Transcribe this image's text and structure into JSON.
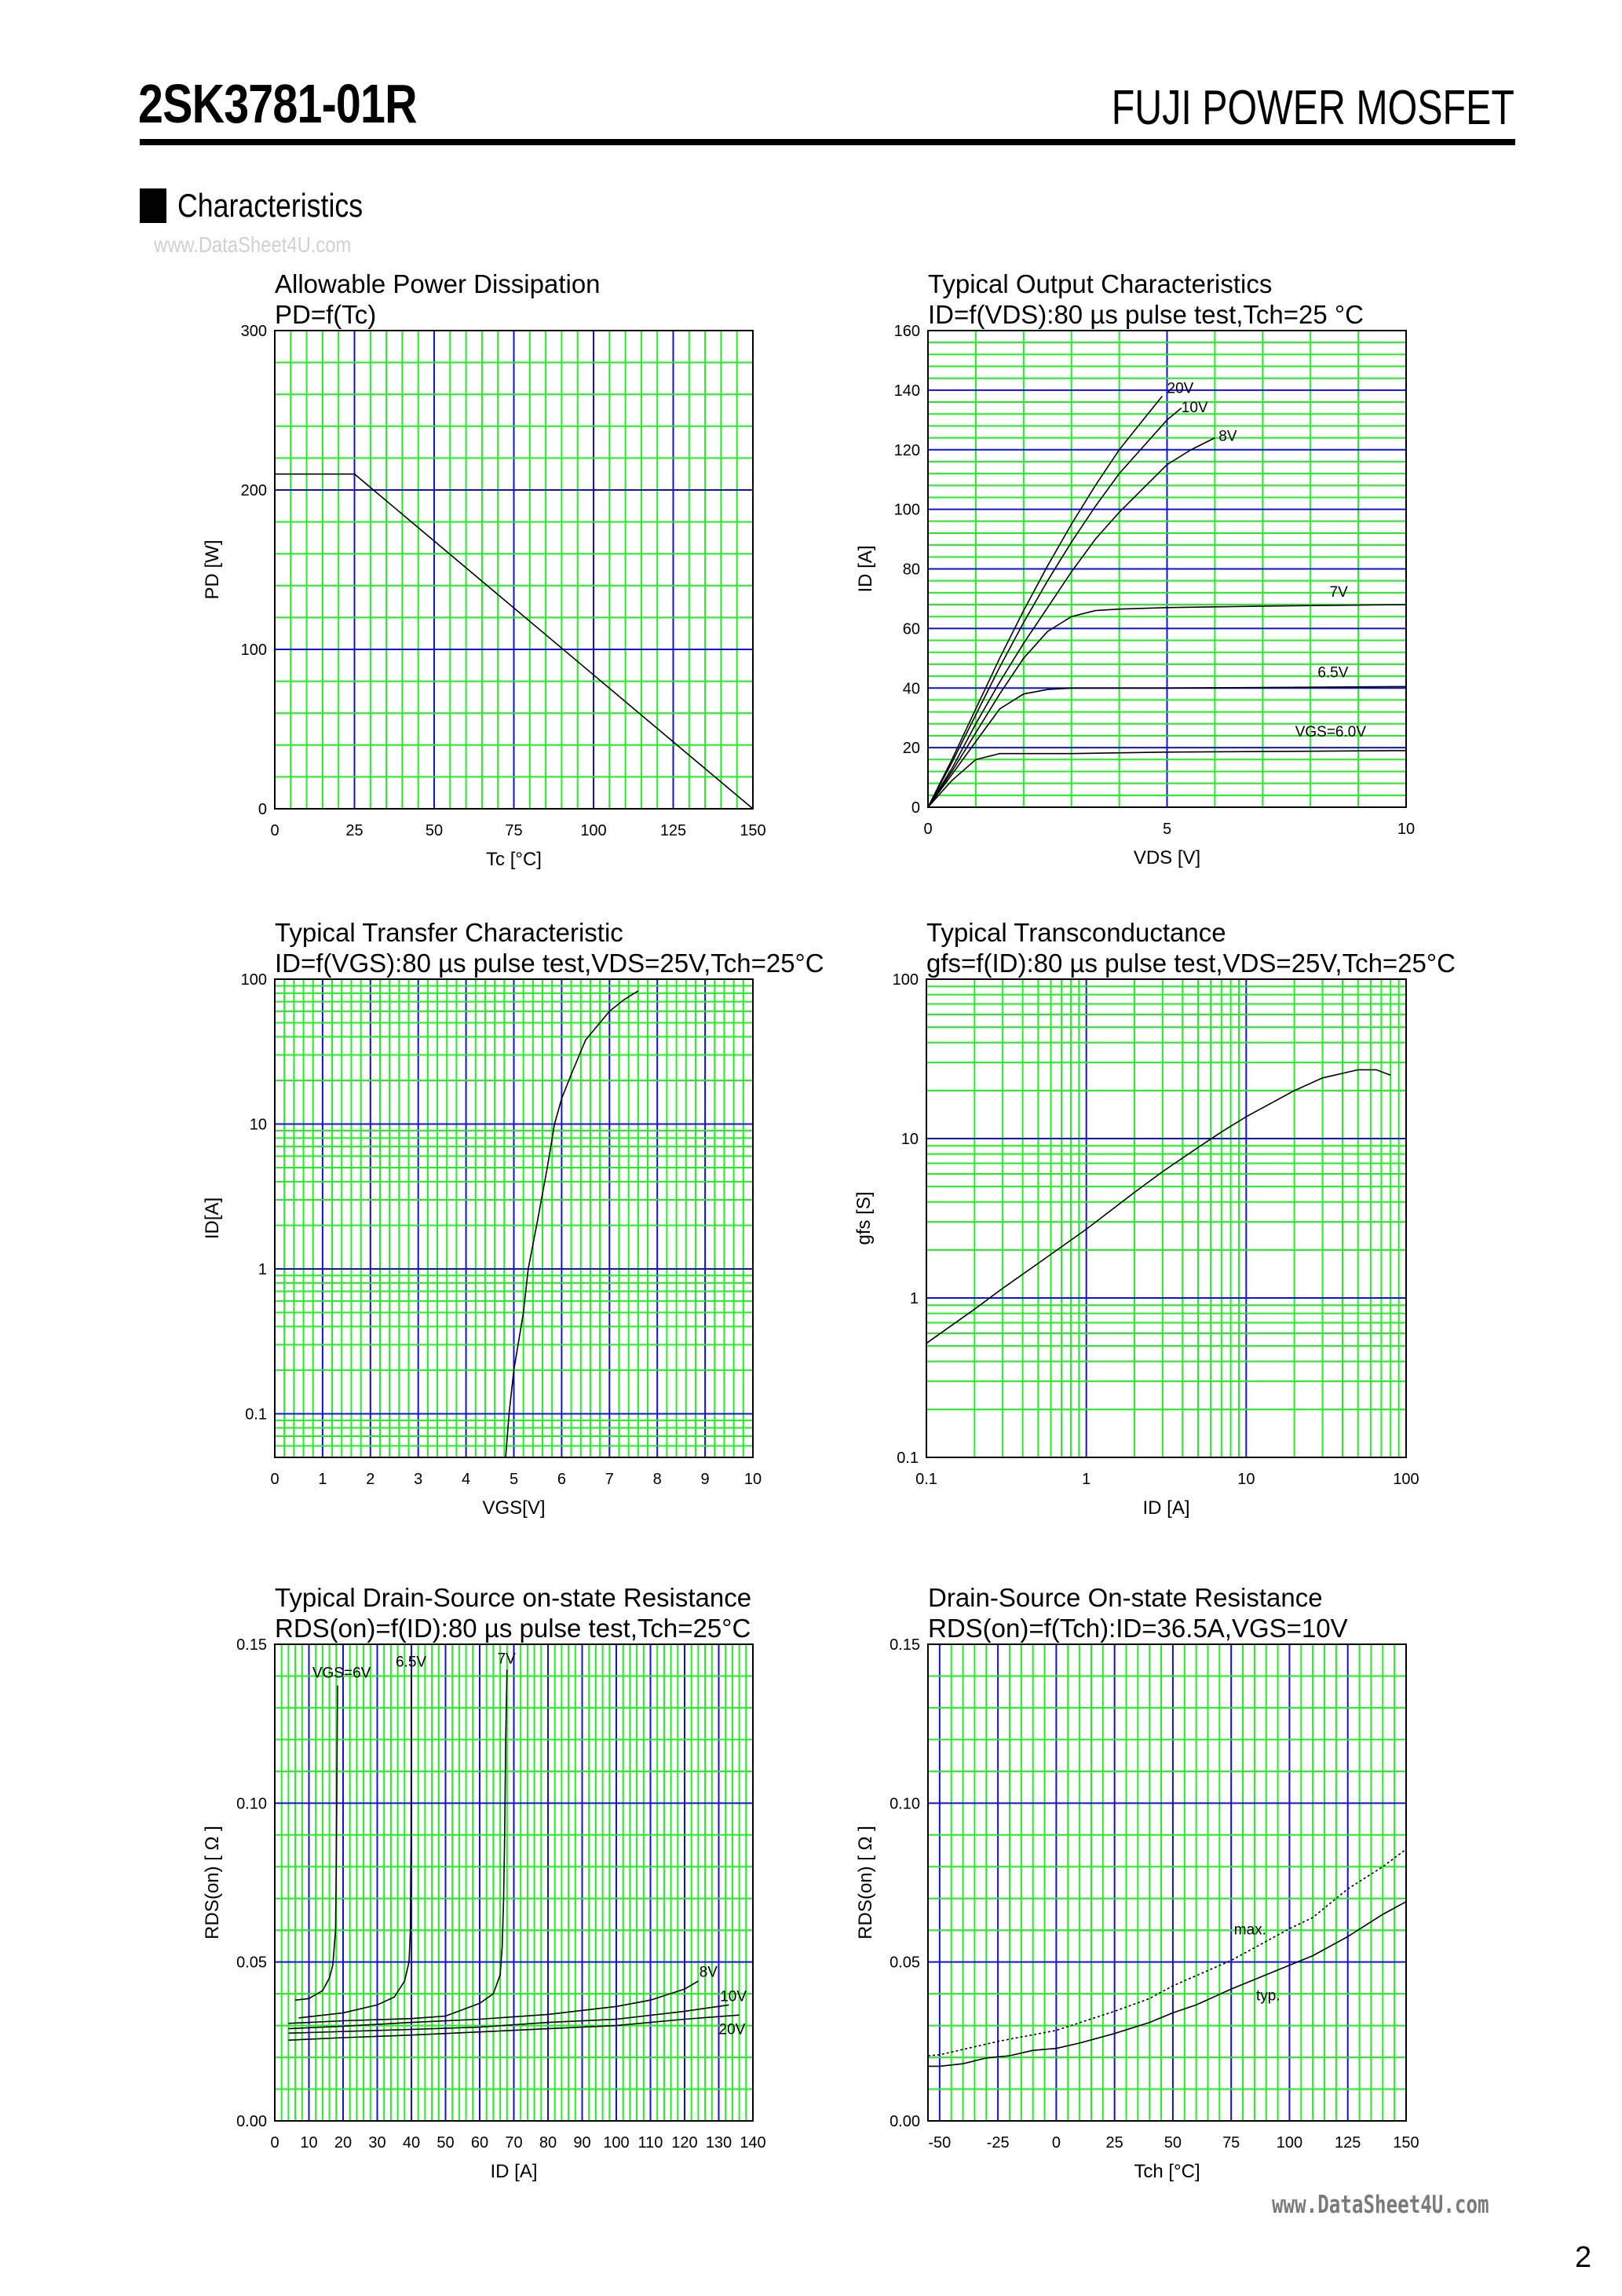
{
  "header": {
    "part_number": "2SK3781-01R",
    "brand": "FUJI POWER MOSFET",
    "section_title": "Characteristics",
    "watermark": "www.DataSheet4U.com"
  },
  "footer": {
    "watermark": "www.DataSheet4U.com",
    "page_number": "2"
  },
  "colors": {
    "grid_minor": "#22ee22",
    "grid_major": "#1010e0",
    "curve": "#000000",
    "watermark": "#7a7a7a"
  },
  "chart_data": [
    {
      "type": "line",
      "title": "Allowable Power Dissipation",
      "subtitle": "PD=f(Tc)",
      "xlabel": "Tc [°C]",
      "ylabel": "PD [W]",
      "xscale": "linear",
      "yscale": "linear",
      "xlim": [
        0,
        150
      ],
      "ylim": [
        0,
        300
      ],
      "grid": true,
      "xticks": [
        "0",
        "25",
        "50",
        "75",
        "100",
        "125",
        "150"
      ],
      "yticks": [
        "0",
        "100",
        "200",
        "300"
      ],
      "series": [
        {
          "points": [
            [
              0,
              210
            ],
            [
              25,
              210
            ],
            [
              150,
              0
            ]
          ]
        }
      ],
      "annotations": []
    },
    {
      "type": "line",
      "title": "Typical Output Characteristics",
      "subtitle": "ID=f(VDS):80 µs pulse test,Tch=25 °C",
      "xlabel": "VDS [V]",
      "ylabel": "ID [A]",
      "xscale": "linear",
      "yscale": "linear",
      "xlim": [
        0,
        10
      ],
      "ylim": [
        0,
        160
      ],
      "grid": true,
      "xticks": [
        "0",
        "5",
        "10"
      ],
      "yticks": [
        "0",
        "20",
        "40",
        "60",
        "80",
        "100",
        "120",
        "140",
        "160"
      ],
      "series": [
        {
          "name": "20V",
          "points": [
            [
              0,
              0
            ],
            [
              0.5,
              16
            ],
            [
              1,
              33
            ],
            [
              1.5,
              50
            ],
            [
              2,
              66
            ],
            [
              2.5,
              81
            ],
            [
              3,
              95
            ],
            [
              3.5,
              108
            ],
            [
              4,
              120
            ],
            [
              4.5,
              130
            ],
            [
              4.9,
              138
            ]
          ]
        },
        {
          "name": "10V",
          "points": [
            [
              0,
              0
            ],
            [
              0.5,
              15
            ],
            [
              1,
              31
            ],
            [
              1.5,
              47
            ],
            [
              2,
              62
            ],
            [
              2.5,
              76
            ],
            [
              3,
              89
            ],
            [
              3.5,
              101
            ],
            [
              4,
              112
            ],
            [
              4.5,
              121
            ],
            [
              5,
              130
            ],
            [
              5.3,
              134
            ]
          ]
        },
        {
          "name": "8V",
          "points": [
            [
              0,
              0
            ],
            [
              0.5,
              13
            ],
            [
              1,
              28
            ],
            [
              1.5,
              42
            ],
            [
              2,
              55
            ],
            [
              2.5,
              67
            ],
            [
              3,
              79
            ],
            [
              3.5,
              90
            ],
            [
              4,
              99
            ],
            [
              4.5,
              107
            ],
            [
              5,
              115
            ],
            [
              5.5,
              120
            ],
            [
              6,
              124
            ]
          ]
        },
        {
          "name": "7V",
          "points": [
            [
              0,
              0
            ],
            [
              0.5,
              12
            ],
            [
              1,
              25
            ],
            [
              1.5,
              38
            ],
            [
              2,
              50
            ],
            [
              2.5,
              59
            ],
            [
              3,
              64
            ],
            [
              3.5,
              66
            ],
            [
              4,
              66.5
            ],
            [
              5,
              67
            ],
            [
              7,
              67.5
            ],
            [
              10,
              68
            ]
          ]
        },
        {
          "name": "6.5V",
          "points": [
            [
              0,
              0
            ],
            [
              0.5,
              11
            ],
            [
              1,
              22
            ],
            [
              1.5,
              33
            ],
            [
              2,
              38
            ],
            [
              2.5,
              39.5
            ],
            [
              3,
              40
            ],
            [
              5,
              40
            ],
            [
              10,
              40.5
            ]
          ]
        },
        {
          "name": "VGS=6.0V",
          "points": [
            [
              0,
              0
            ],
            [
              0.5,
              9
            ],
            [
              1,
              16
            ],
            [
              1.5,
              18
            ],
            [
              2,
              18
            ],
            [
              3,
              18
            ],
            [
              5,
              18.5
            ],
            [
              10,
              19
            ]
          ]
        }
      ],
      "annotations": [
        {
          "text": "20V",
          "x": 5.0,
          "y": 139
        },
        {
          "text": "10V",
          "x": 5.3,
          "y": 132.6
        },
        {
          "text": "8V",
          "x": 6.08,
          "y": 123
        },
        {
          "text": "7V",
          "x": 8.4,
          "y": 70.7
        },
        {
          "text": "6.5V",
          "x": 8.15,
          "y": 43.6
        },
        {
          "text": "VGS=6.0V",
          "x": 7.68,
          "y": 23.7
        }
      ]
    },
    {
      "type": "line",
      "title": "Typical Transfer Characteristic",
      "subtitle": "ID=f(VGS):80 µs pulse test,VDS=25V,Tch=25°C",
      "xlabel": "VGS[V]",
      "ylabel": "ID[A]",
      "xscale": "linear",
      "yscale": "log",
      "xlim": [
        0,
        10
      ],
      "ylim": [
        0.05,
        100
      ],
      "grid": true,
      "xticks": [
        "0",
        "1",
        "2",
        "3",
        "4",
        "5",
        "6",
        "7",
        "8",
        "9",
        "10"
      ],
      "yticks": [
        "0.1",
        "1",
        "10",
        "100"
      ],
      "series": [
        {
          "points": [
            [
              4.83,
              0.05
            ],
            [
              4.9,
              0.1
            ],
            [
              5.0,
              0.2
            ],
            [
              5.2,
              0.5
            ],
            [
              5.3,
              1
            ],
            [
              5.5,
              2.2
            ],
            [
              5.7,
              5
            ],
            [
              5.85,
              10
            ],
            [
              6.0,
              15
            ],
            [
              6.2,
              22
            ],
            [
              6.5,
              38
            ],
            [
              7.0,
              60
            ],
            [
              7.3,
              72
            ],
            [
              7.6,
              83
            ]
          ]
        }
      ],
      "annotations": []
    },
    {
      "type": "line",
      "title": "Typical Transconductance",
      "subtitle": "gfs=f(ID):80 µs pulse test,VDS=25V,Tch=25°C",
      "xlabel": "ID [A]",
      "ylabel": "gfs [S]",
      "xscale": "log",
      "yscale": "log",
      "xlim": [
        0.1,
        100
      ],
      "ylim": [
        0.1,
        100
      ],
      "grid": true,
      "xticks": [
        "0.1",
        "1",
        "10",
        "100"
      ],
      "yticks": [
        "0.1",
        "1",
        "10",
        "100"
      ],
      "series": [
        {
          "points": [
            [
              0.1,
              0.52
            ],
            [
              0.2,
              0.85
            ],
            [
              0.3,
              1.15
            ],
            [
              0.5,
              1.65
            ],
            [
              1,
              2.7
            ],
            [
              2,
              4.6
            ],
            [
              3,
              6.2
            ],
            [
              5,
              8.8
            ],
            [
              7,
              11
            ],
            [
              10,
              13.7
            ],
            [
              20,
              20
            ],
            [
              30,
              24
            ],
            [
              50,
              27
            ],
            [
              65,
              27
            ],
            [
              80,
              25
            ]
          ]
        }
      ],
      "annotations": []
    },
    {
      "type": "line",
      "title": "Typical Drain-Source on-state Resistance",
      "subtitle": "RDS(on)=f(ID):80  µs pulse test,Tch=25°C",
      "xlabel": "ID [A]",
      "ylabel": "RDS(on) [ Ω ]",
      "xscale": "linear",
      "yscale": "linear",
      "xlim": [
        0,
        140
      ],
      "ylim": [
        0,
        0.15
      ],
      "grid": true,
      "xticks": [
        "0",
        "10",
        "20",
        "30",
        "40",
        "50",
        "60",
        "70",
        "80",
        "90",
        "100",
        "110",
        "120",
        "130",
        "140"
      ],
      "yticks": [
        "0.00",
        "0.05",
        "0.10",
        "0.15"
      ],
      "series": [
        {
          "name": "VGS=6V",
          "points": [
            [
              6,
              0.038
            ],
            [
              10,
              0.0385
            ],
            [
              14,
              0.041
            ],
            [
              16,
              0.045
            ],
            [
              17,
              0.049
            ],
            [
              17.8,
              0.06
            ],
            [
              18,
              0.08
            ],
            [
              18.2,
              0.11
            ],
            [
              18.4,
              0.137
            ]
          ]
        },
        {
          "name": "6.5V",
          "points": [
            [
              7,
              0.0324
            ],
            [
              20,
              0.034
            ],
            [
              30,
              0.0365
            ],
            [
              35,
              0.039
            ],
            [
              38,
              0.044
            ],
            [
              39.3,
              0.05
            ],
            [
              39.7,
              0.06
            ],
            [
              39.9,
              0.09
            ],
            [
              40,
              0.142
            ]
          ]
        },
        {
          "name": "7V",
          "points": [
            [
              4,
              0.0307
            ],
            [
              20,
              0.0315
            ],
            [
              40,
              0.0322
            ],
            [
              50,
              0.033
            ],
            [
              60,
              0.037
            ],
            [
              64,
              0.04
            ],
            [
              66,
              0.046
            ],
            [
              66.6,
              0.055
            ],
            [
              67,
              0.07
            ],
            [
              67.3,
              0.09
            ],
            [
              67.6,
              0.12
            ],
            [
              68,
              0.142
            ]
          ]
        },
        {
          "name": "8V",
          "points": [
            [
              4,
              0.029
            ],
            [
              20,
              0.0298
            ],
            [
              40,
              0.031
            ],
            [
              60,
              0.032
            ],
            [
              80,
              0.0335
            ],
            [
              100,
              0.036
            ],
            [
              110,
              0.038
            ],
            [
              120,
              0.0415
            ],
            [
              124,
              0.044
            ]
          ]
        },
        {
          "name": "10V",
          "points": [
            [
              4,
              0.0276
            ],
            [
              40,
              0.0288
            ],
            [
              60,
              0.0295
            ],
            [
              80,
              0.031
            ],
            [
              100,
              0.032
            ],
            [
              120,
              0.0345
            ],
            [
              133,
              0.0365
            ]
          ]
        },
        {
          "name": "20V",
          "points": [
            [
              4,
              0.0254
            ],
            [
              20,
              0.0262
            ],
            [
              40,
              0.027
            ],
            [
              60,
              0.028
            ],
            [
              80,
              0.029
            ],
            [
              100,
              0.03
            ],
            [
              120,
              0.032
            ],
            [
              136,
              0.0333
            ]
          ]
        }
      ],
      "annotations": [
        {
          "text": "VGS=6V",
          "x": 11,
          "y": 0.1395
        },
        {
          "text": "6.5V",
          "x": 35.4,
          "y": 0.143
        },
        {
          "text": "7V",
          "x": 65.2,
          "y": 0.144
        },
        {
          "text": "8V",
          "x": 124.3,
          "y": 0.0453
        },
        {
          "text": "10V",
          "x": 130.4,
          "y": 0.0377
        },
        {
          "text": "20V",
          "x": 130,
          "y": 0.0273
        }
      ]
    },
    {
      "type": "line",
      "title": "Drain-Source On-state Resistance",
      "subtitle": "RDS(on)=f(Tch):ID=36.5A,VGS=10V",
      "xlabel": "Tch [°C]",
      "ylabel": "RDS(on) [ Ω ]",
      "xscale": "linear",
      "yscale": "linear",
      "xlim": [
        -55,
        150
      ],
      "ylim": [
        0,
        0.15
      ],
      "grid": true,
      "xticks": [
        "-50",
        "-25",
        "0",
        "25",
        "50",
        "75",
        "100",
        "125",
        "150"
      ],
      "yticks": [
        "0.00",
        "0.05",
        "0.10",
        "0.15"
      ],
      "series": [
        {
          "name": "max.",
          "style": "dotted",
          "points": [
            [
              -55,
              0.0205
            ],
            [
              -50,
              0.0208
            ],
            [
              -25,
              0.025
            ],
            [
              0,
              0.0285
            ],
            [
              25,
              0.0345
            ],
            [
              40,
              0.0385
            ],
            [
              50,
              0.0425
            ],
            [
              75,
              0.0505
            ],
            [
              100,
              0.0605
            ],
            [
              110,
              0.064
            ],
            [
              125,
              0.073
            ],
            [
              140,
              0.08
            ],
            [
              150,
              0.0855
            ]
          ]
        },
        {
          "name": "typ.",
          "style": "solid",
          "points": [
            [
              -55,
              0.0172
            ],
            [
              -50,
              0.0172
            ],
            [
              -40,
              0.018
            ],
            [
              -30,
              0.0198
            ],
            [
              -20,
              0.0205
            ],
            [
              -10,
              0.0222
            ],
            [
              0,
              0.0228
            ],
            [
              10,
              0.0245
            ],
            [
              25,
              0.0275
            ],
            [
              40,
              0.031
            ],
            [
              50,
              0.034
            ],
            [
              60,
              0.0365
            ],
            [
              75,
              0.0415
            ],
            [
              90,
              0.046
            ],
            [
              100,
              0.049
            ],
            [
              110,
              0.052
            ],
            [
              125,
              0.058
            ],
            [
              140,
              0.065
            ],
            [
              150,
              0.069
            ]
          ]
        }
      ],
      "annotations": [
        {
          "text": "max.",
          "x": 76.2,
          "y": 0.0587
        },
        {
          "text": "typ.",
          "x": 85.7,
          "y": 0.0379
        }
      ]
    }
  ]
}
